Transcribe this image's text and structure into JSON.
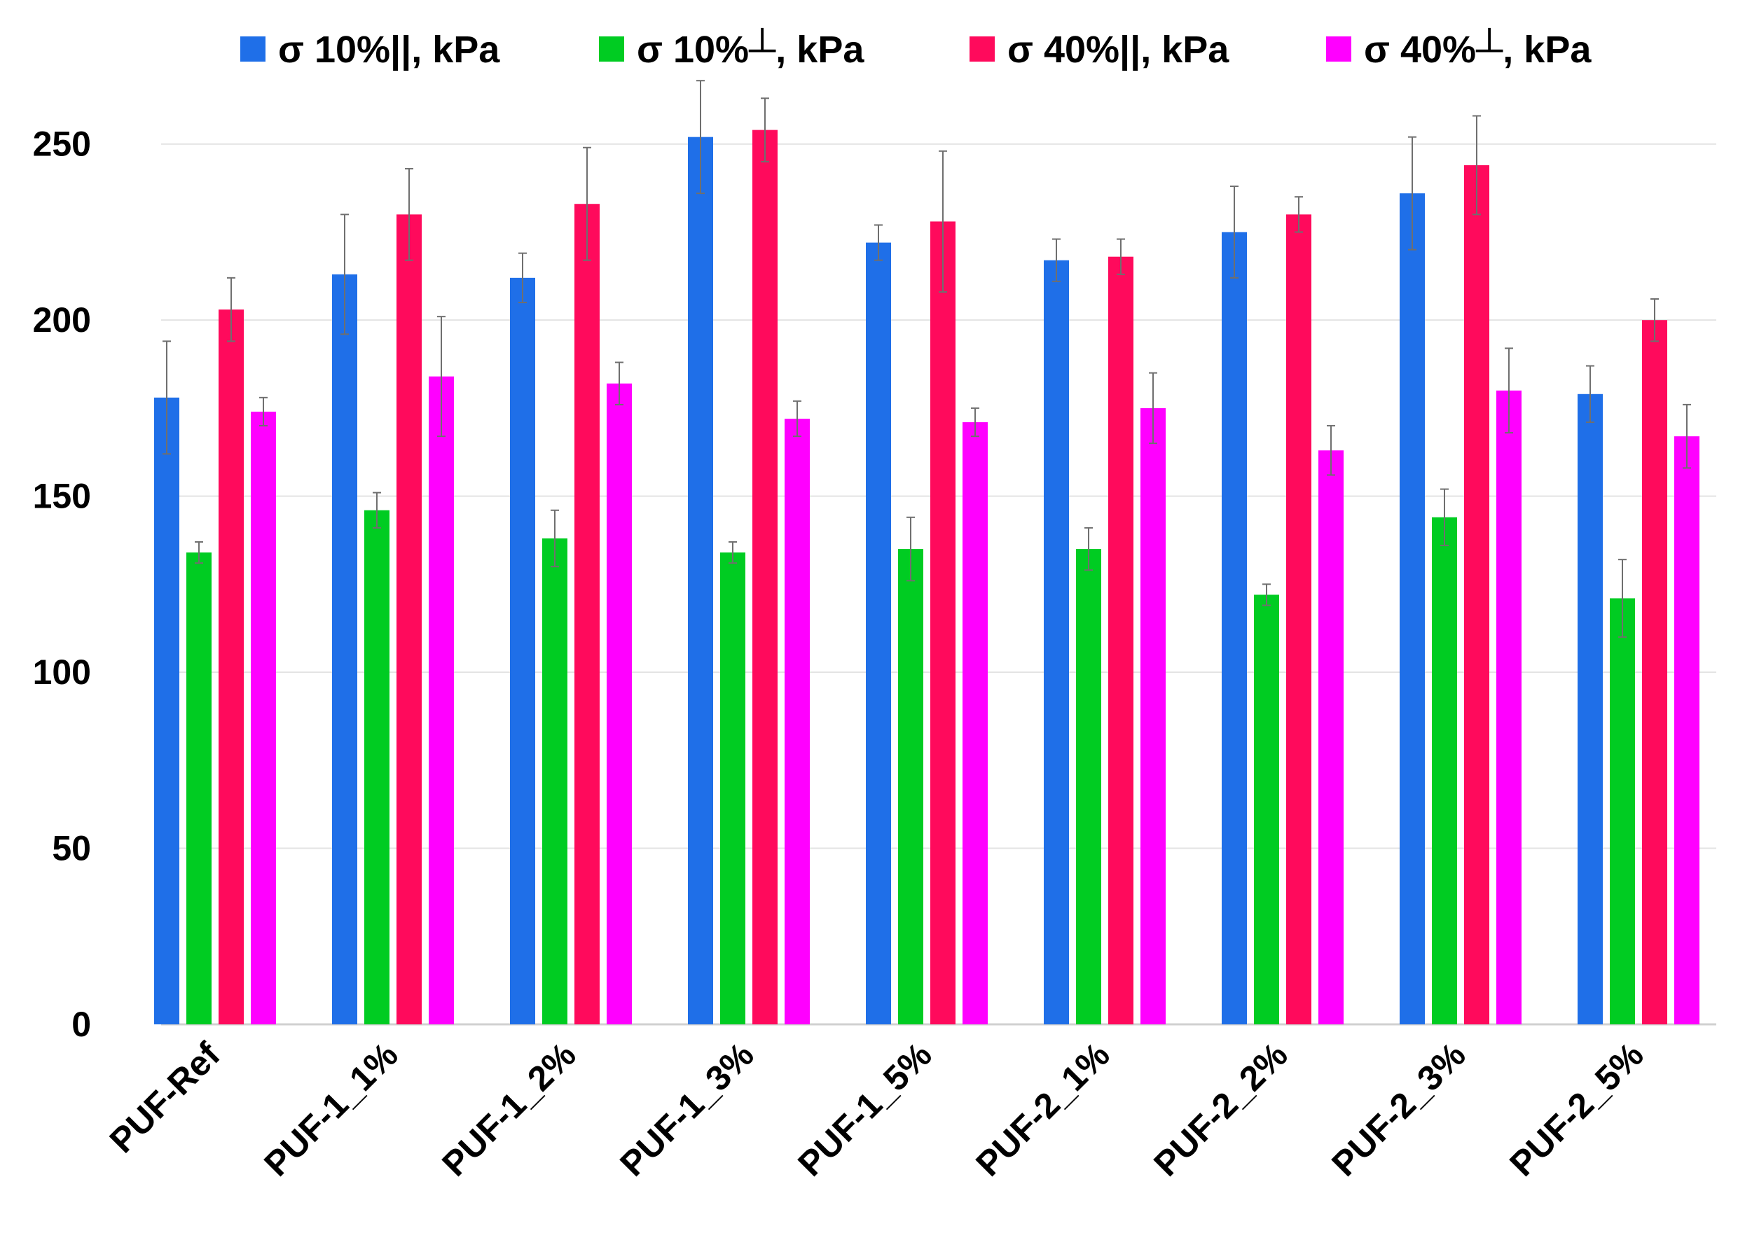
{
  "chart_data": {
    "type": "bar",
    "title": "",
    "xlabel": "",
    "ylabel": "",
    "ylim": [
      0,
      275
    ],
    "yticks": [
      0,
      50,
      100,
      150,
      200,
      250
    ],
    "grid": true,
    "legend_position": "top",
    "categories": [
      "PUF-Ref",
      "PUF-1_1%",
      "PUF-1_2%",
      "PUF-1_3%",
      "PUF-1_5%",
      "PUF-2_1%",
      "PUF-2_2%",
      "PUF-2_3%",
      "PUF-2_5%"
    ],
    "series": [
      {
        "name": "σ 10%||, kPa",
        "color": "#1f6fe8",
        "values": [
          178,
          213,
          212,
          252,
          222,
          217,
          225,
          236,
          179
        ],
        "errors": [
          16,
          17,
          7,
          16,
          5,
          6,
          13,
          16,
          8
        ]
      },
      {
        "name": "σ 10%┴, kPa",
        "color": "#00cc22",
        "values": [
          134,
          146,
          138,
          134,
          135,
          135,
          122,
          144,
          121
        ],
        "errors": [
          3,
          5,
          8,
          3,
          9,
          6,
          3,
          8,
          11
        ]
      },
      {
        "name": "σ 40%||, kPa",
        "color": "#ff0a5c",
        "values": [
          203,
          230,
          233,
          254,
          228,
          218,
          230,
          244,
          200
        ],
        "errors": [
          9,
          13,
          16,
          9,
          20,
          5,
          5,
          14,
          6
        ]
      },
      {
        "name": "σ 40%┴, kPa",
        "color": "#ff00ff",
        "values": [
          174,
          184,
          182,
          172,
          171,
          175,
          163,
          180,
          167
        ],
        "errors": [
          4,
          17,
          6,
          5,
          4,
          10,
          7,
          12,
          9
        ]
      }
    ]
  }
}
